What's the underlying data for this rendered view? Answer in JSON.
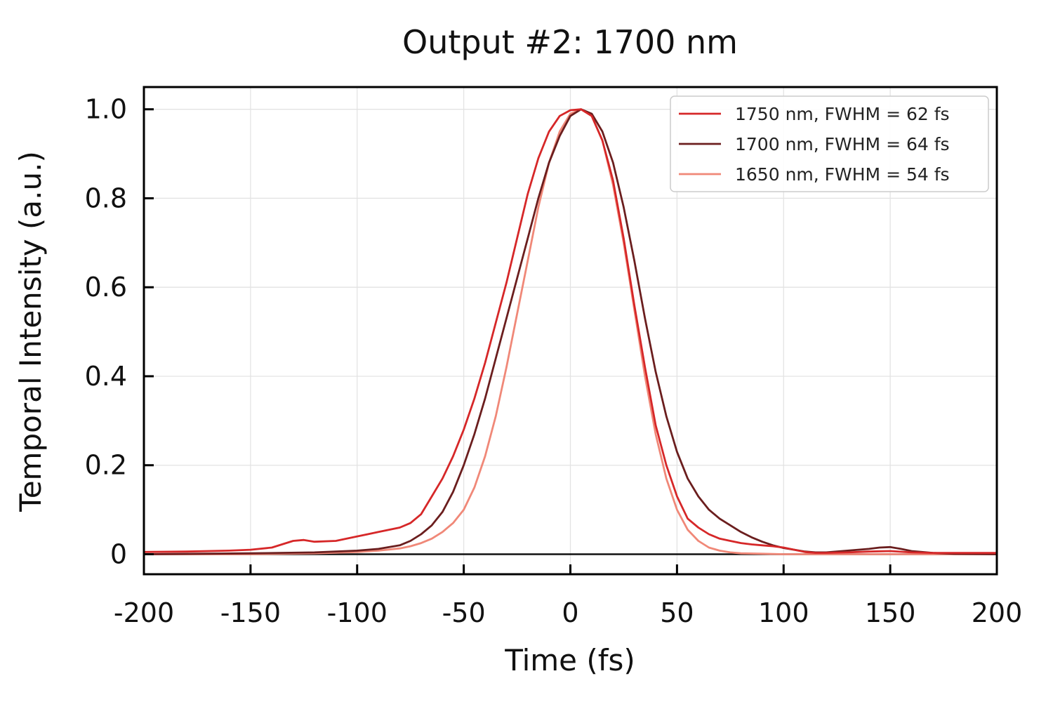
{
  "chart_data": {
    "type": "line",
    "title": "Output #2: 1700 nm",
    "xlabel": "Time (fs)",
    "ylabel": "Temporal Intensity (a.u.)",
    "xlim": [
      -200,
      200
    ],
    "ylim": [
      -0.045,
      1.05
    ],
    "grid": true,
    "legend_position": "top-right",
    "x_ticks": [
      -200,
      -150,
      -100,
      -50,
      0,
      50,
      100,
      150,
      200
    ],
    "x_tick_labels": [
      "-200",
      "-150",
      "-100",
      "-50",
      "0",
      "50",
      "100",
      "150",
      "200"
    ],
    "y_ticks": [
      0,
      0.2,
      0.4,
      0.6,
      0.8,
      1.0
    ],
    "y_tick_labels": [
      "0",
      "0.2",
      "0.4",
      "0.6",
      "0.8",
      "1.0"
    ],
    "series": [
      {
        "name": "1750 nm, FWHM = 62 fs",
        "color": "#d62728",
        "x": [
          -200,
          -180,
          -160,
          -150,
          -140,
          -130,
          -125,
          -120,
          -110,
          -100,
          -95,
          -90,
          -85,
          -80,
          -75,
          -70,
          -65,
          -60,
          -55,
          -50,
          -45,
          -40,
          -35,
          -30,
          -25,
          -20,
          -15,
          -10,
          -5,
          0,
          5,
          10,
          15,
          20,
          25,
          30,
          35,
          40,
          45,
          50,
          55,
          60,
          65,
          70,
          75,
          80,
          85,
          90,
          95,
          100,
          105,
          110,
          115,
          120,
          130,
          140,
          150,
          160,
          170,
          180,
          200
        ],
        "y": [
          0.005,
          0.006,
          0.008,
          0.01,
          0.015,
          0.03,
          0.032,
          0.028,
          0.03,
          0.04,
          0.045,
          0.05,
          0.055,
          0.06,
          0.07,
          0.09,
          0.13,
          0.17,
          0.22,
          0.28,
          0.35,
          0.43,
          0.52,
          0.61,
          0.71,
          0.81,
          0.89,
          0.95,
          0.985,
          0.998,
          1.0,
          0.985,
          0.93,
          0.84,
          0.71,
          0.56,
          0.42,
          0.29,
          0.2,
          0.13,
          0.08,
          0.06,
          0.045,
          0.035,
          0.03,
          0.025,
          0.022,
          0.02,
          0.018,
          0.015,
          0.01,
          0.005,
          0.003,
          0.003,
          0.004,
          0.006,
          0.007,
          0.004,
          0.003,
          0.003,
          0.003
        ]
      },
      {
        "name": "1700 nm, FWHM = 64 fs",
        "color": "#6b1e1e",
        "x": [
          -200,
          -150,
          -120,
          -100,
          -90,
          -80,
          -75,
          -70,
          -65,
          -60,
          -55,
          -50,
          -45,
          -40,
          -35,
          -30,
          -25,
          -20,
          -15,
          -10,
          -5,
          0,
          5,
          10,
          15,
          20,
          25,
          30,
          35,
          40,
          45,
          50,
          55,
          60,
          65,
          70,
          75,
          80,
          85,
          90,
          95,
          100,
          105,
          110,
          115,
          120,
          130,
          140,
          145,
          150,
          155,
          160,
          170,
          180,
          200
        ],
        "y": [
          0.0,
          0.002,
          0.004,
          0.008,
          0.012,
          0.02,
          0.03,
          0.045,
          0.065,
          0.095,
          0.14,
          0.2,
          0.27,
          0.35,
          0.44,
          0.53,
          0.62,
          0.71,
          0.8,
          0.88,
          0.94,
          0.985,
          1.0,
          0.99,
          0.95,
          0.88,
          0.78,
          0.66,
          0.53,
          0.41,
          0.31,
          0.23,
          0.17,
          0.13,
          0.1,
          0.08,
          0.065,
          0.05,
          0.038,
          0.028,
          0.02,
          0.014,
          0.01,
          0.006,
          0.004,
          0.004,
          0.008,
          0.012,
          0.015,
          0.016,
          0.012,
          0.007,
          0.003,
          0.001,
          0.0
        ]
      },
      {
        "name": "1650 nm, FWHM = 54 fs",
        "color": "#f08878",
        "x": [
          -200,
          -150,
          -120,
          -100,
          -90,
          -80,
          -75,
          -70,
          -65,
          -60,
          -55,
          -50,
          -45,
          -40,
          -35,
          -30,
          -25,
          -20,
          -15,
          -10,
          -5,
          0,
          5,
          10,
          15,
          20,
          25,
          30,
          35,
          40,
          45,
          50,
          55,
          60,
          65,
          70,
          75,
          80,
          90,
          100,
          120,
          150,
          200
        ],
        "y": [
          0.0,
          0.0,
          0.002,
          0.005,
          0.008,
          0.013,
          0.018,
          0.025,
          0.035,
          0.05,
          0.07,
          0.1,
          0.15,
          0.22,
          0.31,
          0.42,
          0.54,
          0.66,
          0.78,
          0.88,
          0.95,
          0.99,
          1.0,
          0.985,
          0.93,
          0.83,
          0.7,
          0.55,
          0.4,
          0.27,
          0.17,
          0.1,
          0.055,
          0.03,
          0.015,
          0.008,
          0.004,
          0.002,
          0.001,
          0.0,
          0.0,
          0.0,
          0.0
        ]
      }
    ]
  }
}
